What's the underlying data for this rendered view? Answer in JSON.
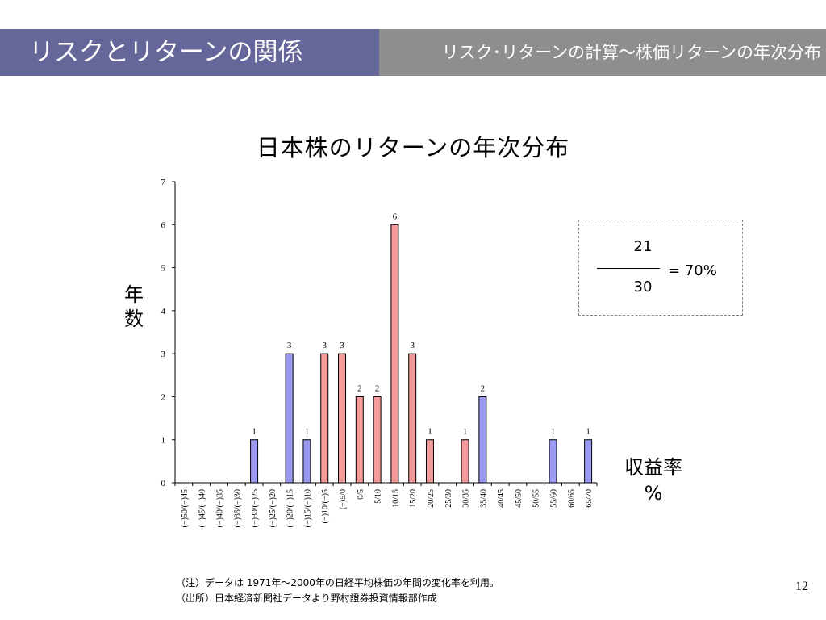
{
  "header": {
    "title": "リスクとリターンの関係",
    "subtitle": "リスク･リターンの計算～株価リターンの年次分布"
  },
  "chart_data": {
    "type": "bar",
    "title": "日本株のリターンの年次分布",
    "ylabel": "年数",
    "xlabel": [
      "収益率",
      "%"
    ],
    "ylim": [
      0,
      7
    ],
    "yticks": [
      "0",
      "1",
      "2",
      "3",
      "4",
      "5",
      "6",
      "7"
    ],
    "categories": [
      "(−)50/(−)45",
      "(−)45/(−)40",
      "(−)40/(−)35",
      "(−)35/(−)30",
      "(−)30/(−)25",
      "(−)25/(−)20",
      "(−)20/(−)15",
      "(−)15/(−)10",
      "(−)10/(−)5",
      "(−)5/0",
      "0/5",
      "5/10",
      "10/15",
      "15/20",
      "20/25",
      "25/30",
      "30/35",
      "35/40",
      "40/45",
      "45/50",
      "50/55",
      "55/60",
      "60/65",
      "65/70"
    ],
    "values": [
      0,
      0,
      0,
      0,
      1,
      0,
      3,
      1,
      3,
      3,
      2,
      2,
      6,
      3,
      1,
      0,
      1,
      2,
      0,
      0,
      0,
      1,
      0,
      1
    ],
    "bar_colors": [
      "blue",
      "blue",
      "blue",
      "blue",
      "blue",
      "blue",
      "blue",
      "blue",
      "red",
      "red",
      "red",
      "red",
      "red",
      "red",
      "red",
      "red",
      "red",
      "blue",
      "blue",
      "blue",
      "blue",
      "blue",
      "blue",
      "blue"
    ],
    "colors": {
      "blue": "#9a9af2",
      "red": "#f59a9a"
    }
  },
  "formula": {
    "numerator": "21",
    "denominator": "30",
    "result": "=  70%"
  },
  "notes": [
    "（注）データは 1971年～2000年の日経平均株価の年間の変化率を利用。",
    "（出所）日本経済新聞社データより野村證券投資情報部作成"
  ],
  "page_number": "12"
}
